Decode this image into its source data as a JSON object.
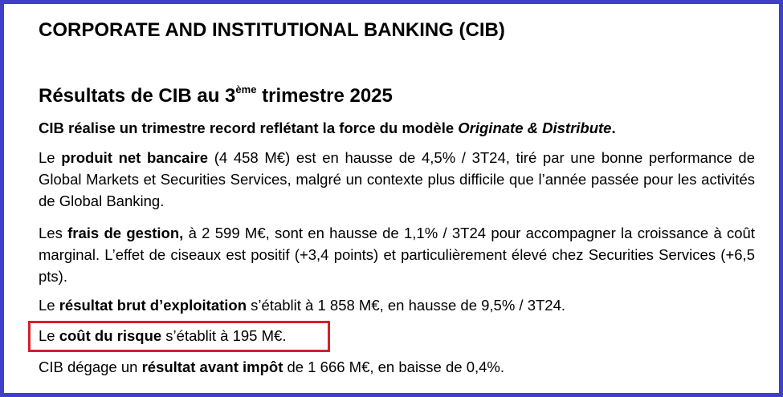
{
  "header": {
    "title": "CORPORATE AND INSTITUTIONAL BANKING (CIB)"
  },
  "section": {
    "title": {
      "before": "Résultats de CIB au 3",
      "sup": "ème",
      "after": " trimestre 2025"
    },
    "paragraphs": [
      [
        "CIB réalise un trimestre record reflétant la force du modèle ",
        "Originate & Distribute",
        "."
      ],
      [
        "Le ",
        "produit net bancaire",
        " (4 458 M€) est en hausse de 4,5% / 3T24, tiré par une bonne performance de Global Markets et Securities Services, malgré un contexte plus difficile que l’année passée pour les activités de Global Banking."
      ],
      [
        "Les ",
        "frais de gestion,",
        " à 2 599 M€, sont en hausse de 1,1% / 3T24 pour accompagner la croissance à coût marginal. L’effet de ciseaux est positif (+3,4 points) et particulièrement élevé chez Securities Services (+6,5 pts)."
      ],
      [
        "Le ",
        "résultat brut d’exploitation",
        " s’établit à 1 858 M€, en hausse de 9,5% / 3T24."
      ],
      [
        "Le ",
        "coût du risque",
        " s’établit à 195 M€."
      ],
      [
        "CIB dégage un ",
        "résultat avant impôt",
        " de 1 666 M€, en baisse de 0,4%."
      ]
    ]
  }
}
